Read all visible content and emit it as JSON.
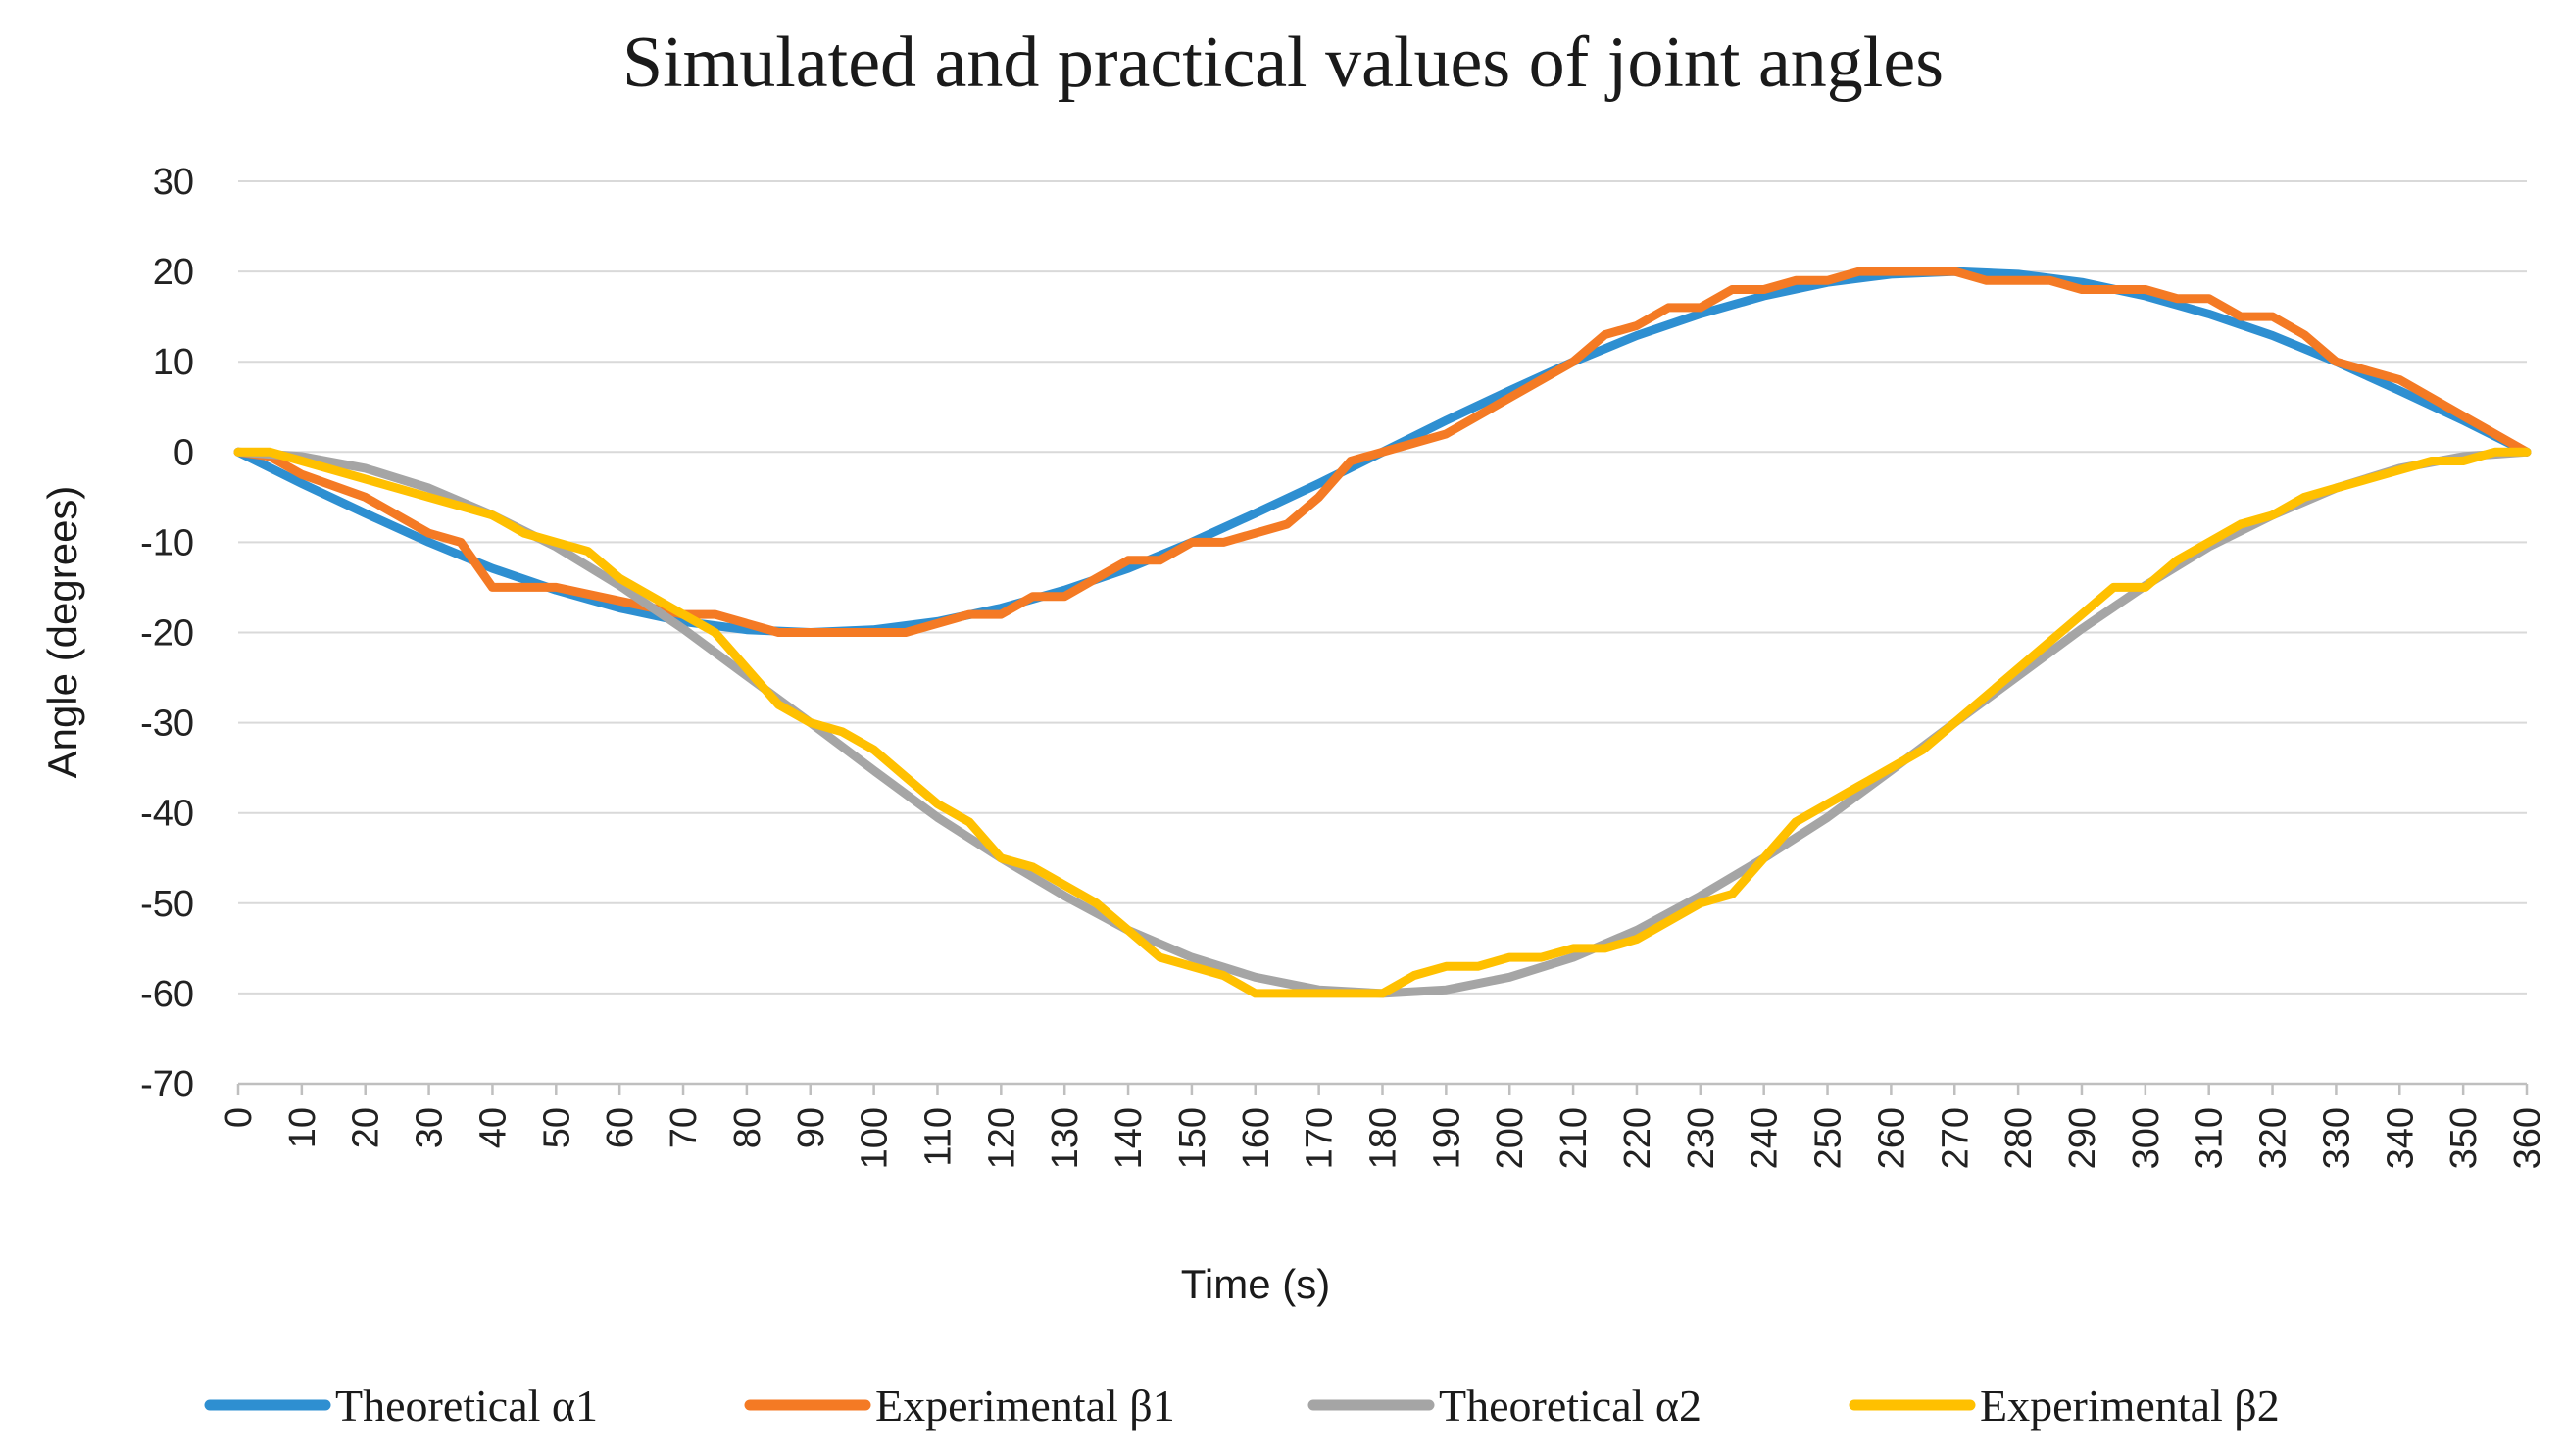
{
  "chart_data": {
    "type": "line",
    "title": "Simulated and practical values of joint angles",
    "xlabel": "Time (s)",
    "ylabel": "Angle (degrees)",
    "xlim": [
      0,
      360
    ],
    "ylim": [
      -70,
      30
    ],
    "x_ticks": [
      "0",
      "10",
      "20",
      "30",
      "40",
      "50",
      "60",
      "70",
      "80",
      "90",
      "100",
      "110",
      "120",
      "130",
      "140",
      "150",
      "160",
      "170",
      "180",
      "190",
      "200",
      "210",
      "220",
      "230",
      "240",
      "250",
      "260",
      "270",
      "280",
      "290",
      "300",
      "310",
      "320",
      "330",
      "340",
      "350",
      "360"
    ],
    "y_ticks": [
      "30",
      "20",
      "10",
      "0",
      "-10",
      "-20",
      "-30",
      "-40",
      "-50",
      "-60",
      "-70"
    ],
    "grid": "horizontal",
    "legend_position": "bottom",
    "series": [
      {
        "name": "Theoretical α1",
        "color": "#2e8fd1",
        "points": [
          [
            0,
            0
          ],
          [
            10,
            -3.5
          ],
          [
            20,
            -6.8
          ],
          [
            30,
            -10
          ],
          [
            40,
            -12.9
          ],
          [
            50,
            -15.3
          ],
          [
            60,
            -17.3
          ],
          [
            70,
            -18.8
          ],
          [
            80,
            -19.7
          ],
          [
            90,
            -20
          ],
          [
            100,
            -19.7
          ],
          [
            110,
            -18.8
          ],
          [
            120,
            -17.3
          ],
          [
            130,
            -15.3
          ],
          [
            140,
            -12.9
          ],
          [
            150,
            -10
          ],
          [
            160,
            -6.8
          ],
          [
            170,
            -3.5
          ],
          [
            180,
            0
          ],
          [
            190,
            3.5
          ],
          [
            200,
            6.8
          ],
          [
            210,
            10
          ],
          [
            220,
            12.9
          ],
          [
            230,
            15.3
          ],
          [
            240,
            17.3
          ],
          [
            250,
            18.8
          ],
          [
            260,
            19.7
          ],
          [
            270,
            20
          ],
          [
            280,
            19.7
          ],
          [
            290,
            18.8
          ],
          [
            300,
            17.3
          ],
          [
            310,
            15.3
          ],
          [
            320,
            12.9
          ],
          [
            330,
            10
          ],
          [
            340,
            6.8
          ],
          [
            350,
            3.5
          ],
          [
            360,
            0
          ]
        ]
      },
      {
        "name": "Experimental β1",
        "color": "#f47a24",
        "points": [
          [
            0,
            0
          ],
          [
            5,
            -0.5
          ],
          [
            10,
            -2.5
          ],
          [
            20,
            -5
          ],
          [
            25,
            -7
          ],
          [
            30,
            -9
          ],
          [
            35,
            -10
          ],
          [
            40,
            -15
          ],
          [
            50,
            -15
          ],
          [
            60,
            -16.5
          ],
          [
            70,
            -18
          ],
          [
            75,
            -18
          ],
          [
            80,
            -19
          ],
          [
            85,
            -20
          ],
          [
            90,
            -20
          ],
          [
            100,
            -20
          ],
          [
            105,
            -20
          ],
          [
            110,
            -19
          ],
          [
            115,
            -18
          ],
          [
            120,
            -18
          ],
          [
            125,
            -16
          ],
          [
            130,
            -16
          ],
          [
            135,
            -14
          ],
          [
            140,
            -12
          ],
          [
            145,
            -12
          ],
          [
            150,
            -10
          ],
          [
            155,
            -10
          ],
          [
            160,
            -9
          ],
          [
            165,
            -8
          ],
          [
            170,
            -5
          ],
          [
            175,
            -1
          ],
          [
            180,
            0
          ],
          [
            190,
            2
          ],
          [
            200,
            6
          ],
          [
            205,
            8
          ],
          [
            210,
            10
          ],
          [
            215,
            13
          ],
          [
            220,
            14
          ],
          [
            225,
            16
          ],
          [
            230,
            16
          ],
          [
            235,
            18
          ],
          [
            240,
            18
          ],
          [
            245,
            19
          ],
          [
            250,
            19
          ],
          [
            255,
            20
          ],
          [
            260,
            20
          ],
          [
            265,
            20
          ],
          [
            270,
            20
          ],
          [
            275,
            19
          ],
          [
            280,
            19
          ],
          [
            285,
            19
          ],
          [
            290,
            18
          ],
          [
            295,
            18
          ],
          [
            300,
            18
          ],
          [
            305,
            17
          ],
          [
            310,
            17
          ],
          [
            315,
            15
          ],
          [
            320,
            15
          ],
          [
            325,
            13
          ],
          [
            330,
            10
          ],
          [
            335,
            9
          ],
          [
            340,
            8
          ],
          [
            345,
            6
          ],
          [
            350,
            4
          ],
          [
            355,
            2
          ],
          [
            360,
            0
          ]
        ]
      },
      {
        "name": "Theoretical α2",
        "color": "#a5a5a5",
        "points": [
          [
            0,
            0
          ],
          [
            10,
            -0.5
          ],
          [
            20,
            -1.8
          ],
          [
            30,
            -4
          ],
          [
            40,
            -7
          ],
          [
            50,
            -10.5
          ],
          [
            60,
            -14.8
          ],
          [
            70,
            -19.6
          ],
          [
            80,
            -24.8
          ],
          [
            90,
            -30
          ],
          [
            100,
            -35.3
          ],
          [
            110,
            -40.5
          ],
          [
            120,
            -45
          ],
          [
            130,
            -49.2
          ],
          [
            140,
            -53
          ],
          [
            150,
            -56
          ],
          [
            160,
            -58.2
          ],
          [
            170,
            -59.6
          ],
          [
            180,
            -60
          ],
          [
            190,
            -59.6
          ],
          [
            200,
            -58.2
          ],
          [
            210,
            -56
          ],
          [
            220,
            -53
          ],
          [
            230,
            -49.2
          ],
          [
            240,
            -45
          ],
          [
            250,
            -40.5
          ],
          [
            260,
            -35.3
          ],
          [
            270,
            -30
          ],
          [
            280,
            -24.8
          ],
          [
            290,
            -19.6
          ],
          [
            300,
            -14.8
          ],
          [
            310,
            -10.5
          ],
          [
            320,
            -7
          ],
          [
            330,
            -4
          ],
          [
            340,
            -1.8
          ],
          [
            350,
            -0.5
          ],
          [
            360,
            0
          ]
        ]
      },
      {
        "name": "Experimental β2",
        "color": "#ffc000",
        "points": [
          [
            0,
            0
          ],
          [
            5,
            0
          ],
          [
            10,
            -1
          ],
          [
            20,
            -3
          ],
          [
            30,
            -5
          ],
          [
            35,
            -6
          ],
          [
            40,
            -7
          ],
          [
            45,
            -9
          ],
          [
            50,
            -10
          ],
          [
            55,
            -11
          ],
          [
            60,
            -14
          ],
          [
            70,
            -18
          ],
          [
            75,
            -20
          ],
          [
            80,
            -24
          ],
          [
            85,
            -28
          ],
          [
            90,
            -30
          ],
          [
            95,
            -31
          ],
          [
            100,
            -33
          ],
          [
            105,
            -36
          ],
          [
            110,
            -39
          ],
          [
            115,
            -41
          ],
          [
            120,
            -45
          ],
          [
            125,
            -46
          ],
          [
            130,
            -48
          ],
          [
            135,
            -50
          ],
          [
            140,
            -53
          ],
          [
            145,
            -56
          ],
          [
            150,
            -57
          ],
          [
            155,
            -58
          ],
          [
            160,
            -60
          ],
          [
            165,
            -60
          ],
          [
            170,
            -60
          ],
          [
            175,
            -60
          ],
          [
            180,
            -60
          ],
          [
            185,
            -58
          ],
          [
            190,
            -57
          ],
          [
            195,
            -57
          ],
          [
            200,
            -56
          ],
          [
            205,
            -56
          ],
          [
            210,
            -55
          ],
          [
            215,
            -55
          ],
          [
            220,
            -54
          ],
          [
            225,
            -52
          ],
          [
            230,
            -50
          ],
          [
            235,
            -49
          ],
          [
            240,
            -45
          ],
          [
            245,
            -41
          ],
          [
            250,
            -39
          ],
          [
            255,
            -37
          ],
          [
            260,
            -35
          ],
          [
            265,
            -33
          ],
          [
            270,
            -30
          ],
          [
            275,
            -27
          ],
          [
            280,
            -24
          ],
          [
            285,
            -21
          ],
          [
            290,
            -18
          ],
          [
            295,
            -15
          ],
          [
            300,
            -15
          ],
          [
            305,
            -12
          ],
          [
            310,
            -10
          ],
          [
            315,
            -8
          ],
          [
            320,
            -7
          ],
          [
            325,
            -5
          ],
          [
            330,
            -4
          ],
          [
            340,
            -2
          ],
          [
            345,
            -1
          ],
          [
            350,
            -1
          ],
          [
            355,
            0
          ],
          [
            360,
            0
          ]
        ]
      }
    ]
  }
}
